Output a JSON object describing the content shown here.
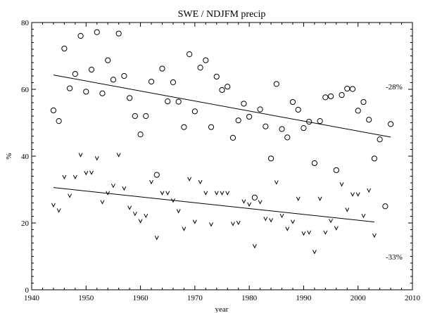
{
  "chart_data": {
    "type": "scatter",
    "title": "SWE / NDJFM precip",
    "xlabel": "year",
    "ylabel": "%",
    "xlim": [
      1940,
      2010
    ],
    "ylim": [
      0,
      80
    ],
    "x_ticks": [
      1940,
      1950,
      1960,
      1970,
      1980,
      1990,
      2000,
      2010
    ],
    "y_ticks": [
      0,
      20,
      40,
      60,
      80
    ],
    "grid": false,
    "series": [
      {
        "marker": "circle",
        "points": [
          [
            1944,
            53.7
          ],
          [
            1945,
            50.5
          ],
          [
            1946,
            72.2
          ],
          [
            1947,
            60.3
          ],
          [
            1948,
            64.6
          ],
          [
            1949,
            76.0
          ],
          [
            1950,
            59.3
          ],
          [
            1951,
            65.9
          ],
          [
            1952,
            77.1
          ],
          [
            1953,
            58.8
          ],
          [
            1954,
            68.7
          ],
          [
            1955,
            62.9
          ],
          [
            1956,
            76.7
          ],
          [
            1957,
            64.0
          ],
          [
            1958,
            57.4
          ],
          [
            1959,
            52.0
          ],
          [
            1960,
            46.5
          ],
          [
            1961,
            52.0
          ],
          [
            1962,
            62.3
          ],
          [
            1963,
            34.4
          ],
          [
            1964,
            66.2
          ],
          [
            1965,
            56.4
          ],
          [
            1966,
            62.1
          ],
          [
            1967,
            56.3
          ],
          [
            1968,
            48.7
          ],
          [
            1969,
            70.5
          ],
          [
            1970,
            53.4
          ],
          [
            1971,
            66.5
          ],
          [
            1972,
            68.7
          ],
          [
            1973,
            48.7
          ],
          [
            1974,
            63.8
          ],
          [
            1975,
            59.8
          ],
          [
            1976,
            60.8
          ],
          [
            1977,
            45.5
          ],
          [
            1978,
            50.7
          ],
          [
            1979,
            55.7
          ],
          [
            1980,
            51.8
          ],
          [
            1981,
            27.6
          ],
          [
            1982,
            54.0
          ],
          [
            1983,
            48.9
          ],
          [
            1984,
            39.3
          ],
          [
            1985,
            61.6
          ],
          [
            1986,
            48.1
          ],
          [
            1987,
            45.6
          ],
          [
            1988,
            56.2
          ],
          [
            1989,
            53.9
          ],
          [
            1990,
            48.4
          ],
          [
            1991,
            50.3
          ],
          [
            1992,
            37.9
          ],
          [
            1993,
            50.5
          ],
          [
            1994,
            57.6
          ],
          [
            1995,
            57.9
          ],
          [
            1996,
            35.8
          ],
          [
            1997,
            58.3
          ],
          [
            1998,
            60.2
          ],
          [
            1999,
            60.1
          ],
          [
            2000,
            53.6
          ],
          [
            2001,
            56.2
          ],
          [
            2002,
            50.9
          ],
          [
            2003,
            39.3
          ],
          [
            2004,
            45.0
          ],
          [
            2005,
            25.0
          ],
          [
            2006,
            49.6
          ]
        ],
        "trend": {
          "x": [
            1944,
            2006
          ],
          "y": [
            64.3,
            45.7
          ]
        },
        "trend_label": "-28%"
      },
      {
        "marker": "v",
        "points": [
          [
            1944,
            25.4
          ],
          [
            1945,
            23.8
          ],
          [
            1946,
            33.8
          ],
          [
            1947,
            28.2
          ],
          [
            1948,
            33.8
          ],
          [
            1949,
            40.4
          ],
          [
            1950,
            35.0
          ],
          [
            1951,
            35.1
          ],
          [
            1952,
            39.4
          ],
          [
            1953,
            26.3
          ],
          [
            1954,
            29.0
          ],
          [
            1955,
            31.2
          ],
          [
            1956,
            40.4
          ],
          [
            1957,
            30.4
          ],
          [
            1958,
            24.6
          ],
          [
            1959,
            22.8
          ],
          [
            1960,
            20.6
          ],
          [
            1961,
            22.2
          ],
          [
            1962,
            32.3
          ],
          [
            1963,
            15.6
          ],
          [
            1964,
            29.0
          ],
          [
            1965,
            29.0
          ],
          [
            1966,
            26.8
          ],
          [
            1967,
            23.6
          ],
          [
            1968,
            18.3
          ],
          [
            1969,
            33.2
          ],
          [
            1970,
            20.4
          ],
          [
            1971,
            32.3
          ],
          [
            1972,
            29.0
          ],
          [
            1973,
            19.6
          ],
          [
            1974,
            29.0
          ],
          [
            1975,
            29.0
          ],
          [
            1976,
            29.0
          ],
          [
            1977,
            19.8
          ],
          [
            1978,
            20.1
          ],
          [
            1979,
            26.5
          ],
          [
            1980,
            25.6
          ],
          [
            1981,
            13.1
          ],
          [
            1982,
            26.3
          ],
          [
            1983,
            21.3
          ],
          [
            1984,
            20.9
          ],
          [
            1985,
            32.2
          ],
          [
            1986,
            22.2
          ],
          [
            1987,
            18.3
          ],
          [
            1988,
            20.4
          ],
          [
            1989,
            27.3
          ],
          [
            1990,
            16.9
          ],
          [
            1991,
            17.2
          ],
          [
            1992,
            11.4
          ],
          [
            1993,
            27.3
          ],
          [
            1994,
            17.2
          ],
          [
            1995,
            20.7
          ],
          [
            1996,
            18.5
          ],
          [
            1997,
            31.6
          ],
          [
            1998,
            24.0
          ],
          [
            1999,
            28.6
          ],
          [
            2000,
            28.6
          ],
          [
            2001,
            22.2
          ],
          [
            2002,
            29.8
          ],
          [
            2003,
            16.3
          ]
        ],
        "trend": {
          "x": [
            1944,
            2003
          ],
          "y": [
            30.6,
            20.3
          ]
        },
        "trend_label": "-33%"
      }
    ]
  }
}
